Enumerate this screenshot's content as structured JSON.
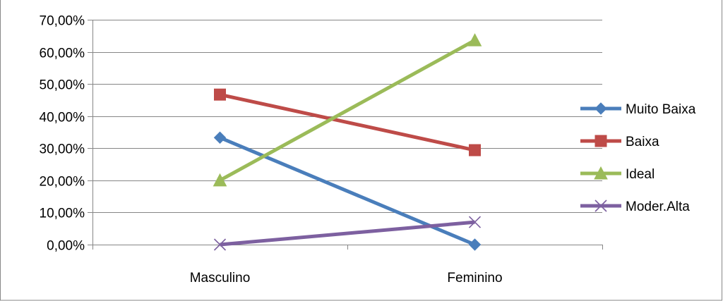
{
  "chart_data": {
    "type": "line",
    "title": "",
    "xlabel": "",
    "ylabel": "",
    "categories": [
      "Masculino",
      "Feminino"
    ],
    "ylim": [
      0,
      0.7
    ],
    "y_ticks": [
      0,
      0.1,
      0.2,
      0.3,
      0.4,
      0.5,
      0.6,
      0.7
    ],
    "y_tick_labels": [
      "0,00%",
      "10,00%",
      "20,00%",
      "30,00%",
      "40,00%",
      "50,00%",
      "60,00%",
      "70,00%"
    ],
    "grid": true,
    "legend_position": "right",
    "series": [
      {
        "name": "Muito Baixa",
        "values": [
          0.333,
          0.0
        ],
        "color": "#4a7ebb",
        "marker": "diamond"
      },
      {
        "name": "Baixa",
        "values": [
          0.467,
          0.294
        ],
        "color": "#be4b48",
        "marker": "square"
      },
      {
        "name": "Ideal",
        "values": [
          0.2,
          0.636
        ],
        "color": "#9bbb59",
        "marker": "triangle"
      },
      {
        "name": "Moder.Alta",
        "values": [
          0.0,
          0.07
        ],
        "color": "#7d60a0",
        "marker": "x"
      }
    ]
  }
}
